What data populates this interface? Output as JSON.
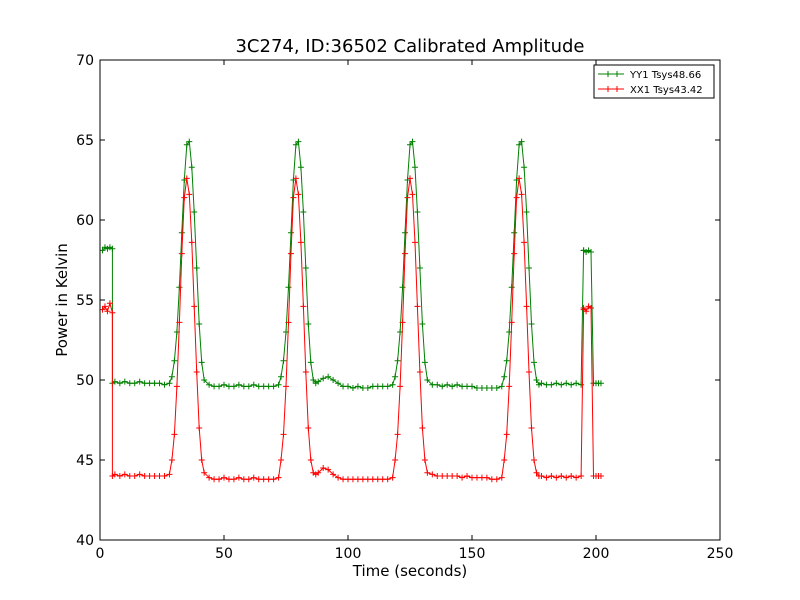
{
  "chart_data": {
    "type": "line",
    "title": "3C274, ID:36502 Calibrated Amplitude",
    "xlabel": "Time (seconds)",
    "ylabel": "Power in Kelvin",
    "xlim": [
      0,
      250
    ],
    "ylim": [
      40,
      70
    ],
    "xticks": [
      0,
      50,
      100,
      150,
      200,
      250
    ],
    "yticks": [
      40,
      45,
      50,
      55,
      60,
      65,
      70
    ],
    "grid": false,
    "legend_position": "top-right",
    "marker": "+",
    "series": [
      {
        "name": "YY1 Tsys48.66",
        "color": "#008000",
        "x": [
          1,
          2,
          3,
          4,
          5,
          5,
          6,
          8,
          10,
          12,
          14,
          16,
          18,
          20,
          22,
          24,
          26,
          28,
          29,
          30,
          31,
          32,
          33,
          34,
          35,
          36,
          37,
          38,
          39,
          40,
          41,
          42,
          44,
          46,
          48,
          50,
          52,
          54,
          56,
          58,
          60,
          62,
          64,
          66,
          68,
          70,
          72,
          73,
          74,
          75,
          76,
          77,
          78,
          79,
          80,
          81,
          82,
          83,
          84,
          85,
          86,
          87,
          88,
          90,
          92,
          94,
          96,
          98,
          100,
          102,
          104,
          106,
          108,
          110,
          112,
          114,
          116,
          118,
          119,
          120,
          121,
          122,
          123,
          124,
          125,
          126,
          127,
          128,
          129,
          130,
          131,
          132,
          134,
          136,
          138,
          140,
          142,
          144,
          146,
          148,
          150,
          152,
          154,
          156,
          158,
          160,
          162,
          163,
          164,
          165,
          166,
          167,
          168,
          169,
          170,
          171,
          172,
          173,
          174,
          175,
          176,
          177,
          178,
          180,
          182,
          184,
          186,
          188,
          190,
          192,
          194,
          195,
          195,
          196,
          197,
          198,
          199,
          200,
          201,
          202
        ],
        "y": [
          58.1,
          58.3,
          58.2,
          58.3,
          58.2,
          49.8,
          49.9,
          49.8,
          49.9,
          49.8,
          49.8,
          49.9,
          49.8,
          49.8,
          49.8,
          49.8,
          49.7,
          49.8,
          50.2,
          51.2,
          53.0,
          55.8,
          59.2,
          62.5,
          64.7,
          64.9,
          63.3,
          60.5,
          57.0,
          53.5,
          51.1,
          50.0,
          49.7,
          49.6,
          49.6,
          49.7,
          49.6,
          49.6,
          49.7,
          49.6,
          49.6,
          49.7,
          49.6,
          49.6,
          49.6,
          49.6,
          49.7,
          50.2,
          51.2,
          53.0,
          55.8,
          59.2,
          62.5,
          64.7,
          64.9,
          63.3,
          60.5,
          57.0,
          53.5,
          51.1,
          50.0,
          49.8,
          49.9,
          50.1,
          50.2,
          50.0,
          49.8,
          49.6,
          49.6,
          49.5,
          49.6,
          49.5,
          49.5,
          49.6,
          49.6,
          49.6,
          49.6,
          49.7,
          50.2,
          51.2,
          53.0,
          55.8,
          59.2,
          62.5,
          64.7,
          64.9,
          63.3,
          60.5,
          57.0,
          53.5,
          51.1,
          50.0,
          49.7,
          49.7,
          49.6,
          49.7,
          49.6,
          49.7,
          49.6,
          49.6,
          49.6,
          49.5,
          49.5,
          49.5,
          49.5,
          49.5,
          49.6,
          50.2,
          51.2,
          53.0,
          55.8,
          59.2,
          62.5,
          64.7,
          64.9,
          63.3,
          60.5,
          57.0,
          53.5,
          51.1,
          50.0,
          49.7,
          49.8,
          49.7,
          49.7,
          49.8,
          49.7,
          49.8,
          49.7,
          49.8,
          49.7,
          58.1,
          58.1,
          58.0,
          58.1,
          58.0,
          49.8,
          49.8,
          49.8,
          49.8
        ]
      },
      {
        "name": "XX1 Tsys43.42",
        "color": "#ff0000",
        "x": [
          1,
          2,
          3,
          4,
          5,
          5,
          6,
          8,
          10,
          12,
          14,
          16,
          18,
          20,
          22,
          24,
          26,
          28,
          29,
          30,
          31,
          32,
          33,
          34,
          35,
          36,
          37,
          38,
          39,
          40,
          41,
          42,
          44,
          46,
          48,
          50,
          52,
          54,
          56,
          58,
          60,
          62,
          64,
          66,
          68,
          70,
          72,
          73,
          74,
          75,
          76,
          77,
          78,
          79,
          80,
          81,
          82,
          83,
          84,
          85,
          86,
          87,
          88,
          90,
          92,
          94,
          96,
          98,
          100,
          102,
          104,
          106,
          108,
          110,
          112,
          114,
          116,
          118,
          119,
          120,
          121,
          122,
          123,
          124,
          125,
          126,
          127,
          128,
          129,
          130,
          131,
          132,
          134,
          136,
          138,
          140,
          142,
          144,
          146,
          148,
          150,
          152,
          154,
          156,
          158,
          160,
          162,
          163,
          164,
          165,
          166,
          167,
          168,
          169,
          170,
          171,
          172,
          173,
          174,
          175,
          176,
          177,
          178,
          180,
          182,
          184,
          186,
          188,
          190,
          192,
          194,
          195,
          195,
          196,
          197,
          198,
          199,
          200,
          201,
          202
        ],
        "y": [
          54.4,
          54.6,
          54.3,
          54.8,
          54.2,
          44.0,
          44.1,
          44.0,
          44.1,
          44.0,
          44.0,
          44.1,
          44.0,
          44.0,
          44.0,
          44.0,
          44.0,
          44.1,
          45.0,
          46.6,
          49.6,
          53.6,
          57.9,
          61.4,
          62.6,
          61.6,
          58.6,
          54.6,
          50.5,
          47.0,
          45.0,
          44.2,
          43.9,
          43.8,
          43.8,
          43.9,
          43.8,
          43.8,
          43.9,
          43.8,
          43.8,
          43.9,
          43.8,
          43.8,
          43.8,
          43.8,
          43.9,
          45.0,
          46.6,
          49.6,
          53.6,
          57.9,
          61.4,
          62.6,
          61.6,
          58.6,
          54.6,
          50.5,
          47.0,
          45.0,
          44.2,
          44.1,
          44.2,
          44.5,
          44.4,
          44.1,
          43.9,
          43.8,
          43.8,
          43.8,
          43.8,
          43.8,
          43.8,
          43.8,
          43.8,
          43.8,
          43.8,
          43.9,
          45.0,
          46.6,
          49.6,
          53.6,
          57.9,
          61.4,
          62.6,
          61.6,
          58.6,
          54.6,
          50.5,
          47.0,
          45.0,
          44.2,
          44.1,
          44.0,
          44.0,
          44.0,
          44.0,
          44.0,
          43.9,
          44.0,
          43.9,
          43.9,
          43.9,
          43.9,
          43.8,
          43.8,
          43.9,
          45.0,
          46.6,
          49.6,
          53.6,
          57.9,
          61.4,
          62.6,
          61.6,
          58.6,
          54.6,
          50.5,
          47.0,
          45.0,
          44.2,
          44.0,
          44.0,
          43.9,
          44.0,
          43.9,
          44.0,
          43.9,
          44.0,
          43.9,
          44.0,
          54.4,
          54.5,
          54.3,
          54.6,
          54.5,
          44.0,
          44.0,
          44.0,
          44.0
        ]
      }
    ]
  }
}
